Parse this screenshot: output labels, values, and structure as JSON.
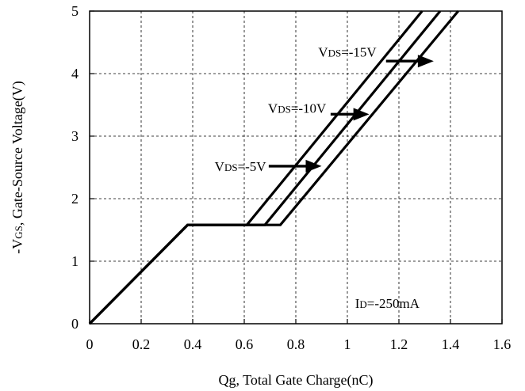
{
  "chart_data": {
    "type": "line",
    "xlabel": "Qg, Total Gate Charge(nC)",
    "ylabel": {
      "prefix": "-V",
      "sub": "GS",
      "suffix": ", Gate-Source Voltage(V)"
    },
    "xlim": [
      0,
      1.6
    ],
    "ylim": [
      0,
      5
    ],
    "x_ticks": [
      "0",
      "0.2",
      "0.4",
      "0.6",
      "0.8",
      "1",
      "1.2",
      "1.4",
      "1.6"
    ],
    "y_ticks": [
      "0",
      "1",
      "2",
      "3",
      "4",
      "5"
    ],
    "grid": true,
    "grid_style": "dashed",
    "series": [
      {
        "name": "VDS=-5V",
        "x": [
          0,
          0.38,
          0.61,
          1.29
        ],
        "y": [
          0,
          1.58,
          1.58,
          5
        ]
      },
      {
        "name": "VDS=-10V",
        "x": [
          0,
          0.38,
          0.68,
          1.36
        ],
        "y": [
          0,
          1.58,
          1.58,
          5
        ]
      },
      {
        "name": "VDS=-15V",
        "x": [
          0,
          0.38,
          0.74,
          1.43
        ],
        "y": [
          0,
          1.58,
          1.58,
          5
        ]
      }
    ],
    "annotations": [
      {
        "series": 2,
        "pre": "V",
        "sub": "DS",
        "post": "=-15V",
        "text_at": [
          1.0,
          4.35
        ],
        "arrow_from": [
          1.15,
          4.2
        ],
        "arrow_to": [
          1.335,
          4.2
        ]
      },
      {
        "series": 1,
        "pre": "V",
        "sub": "DS",
        "post": "=-10V",
        "text_at": [
          0.805,
          3.45
        ],
        "arrow_from": [
          0.935,
          3.35
        ],
        "arrow_to": [
          1.085,
          3.35
        ]
      },
      {
        "series": 0,
        "pre": "V",
        "sub": "DS",
        "post": "=-5V",
        "text_at": [
          0.585,
          2.52
        ],
        "arrow_from": [
          0.695,
          2.52
        ],
        "arrow_to": [
          0.9,
          2.52
        ]
      }
    ],
    "note": {
      "pre": "I",
      "sub": "D",
      "post": "=-250mA",
      "at": [
        1.155,
        0.33
      ]
    }
  }
}
